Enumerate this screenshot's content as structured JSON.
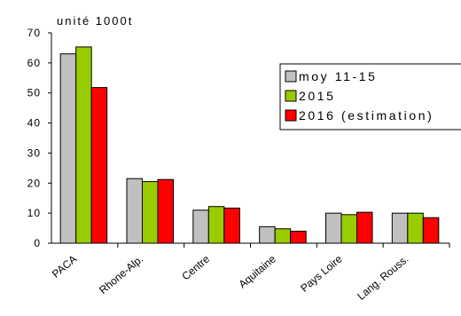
{
  "chart_data": {
    "type": "bar",
    "unit_label": "unité 1000t",
    "categories": [
      "PACA",
      "Rhone-Alp.",
      "Centre",
      "Aquitaine",
      "Pays Loire",
      "Lang. Rouss."
    ],
    "series": [
      {
        "name": "moy 11-15",
        "color": "#c0c0c0",
        "values": [
          63,
          21.5,
          11,
          5.5,
          10,
          10
        ]
      },
      {
        "name": "2015",
        "color": "#99cc00",
        "values": [
          65.3,
          20.5,
          12.2,
          4.8,
          9.5,
          10
        ]
      },
      {
        "name": "2016 (estimation)",
        "color": "#ff0000",
        "values": [
          51.8,
          21.2,
          11.7,
          4,
          10.3,
          8.5
        ]
      }
    ],
    "yticks": [
      "0",
      "10",
      "20",
      "30",
      "40",
      "50",
      "60",
      "70"
    ],
    "ylim": [
      0,
      70
    ],
    "grid": false,
    "legend_position": "right"
  }
}
